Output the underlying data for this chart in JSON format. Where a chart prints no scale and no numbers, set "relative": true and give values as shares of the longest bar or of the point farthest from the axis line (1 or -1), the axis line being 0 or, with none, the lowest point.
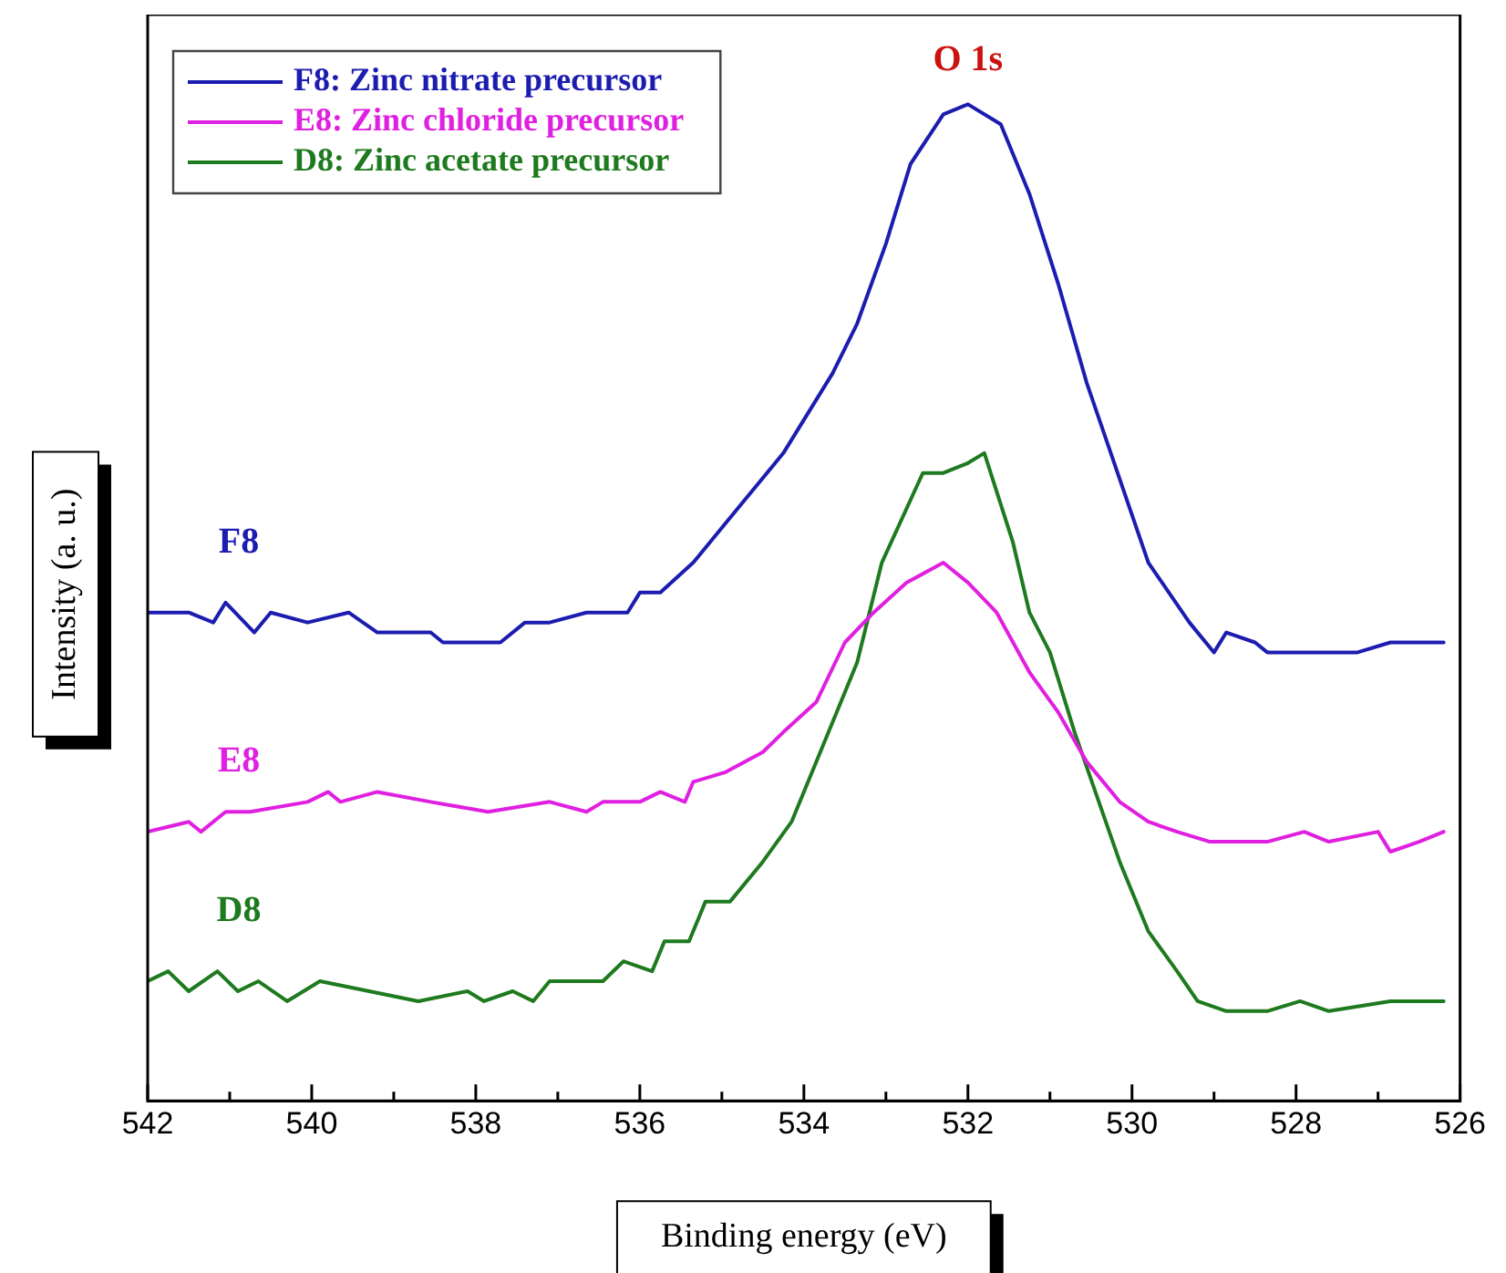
{
  "chart_data": {
    "type": "line",
    "xlabel": "Binding energy (eV)",
    "ylabel": "Intensity (a. u.)",
    "relative": true,
    "legend": "top left",
    "tick_labels": "x",
    "grid": false,
    "marker": "none",
    "line_style": "solid",
    "xlim": [
      542,
      526
    ],
    "xticks": [
      542,
      {
        "value": 541,
        "label": null
      },
      540,
      {
        "value": 539,
        "label": null
      },
      538,
      {
        "value": 537,
        "label": null
      },
      536,
      {
        "value": 535,
        "label": null
      },
      534,
      {
        "value": 533,
        "label": null
      },
      532,
      {
        "value": 531,
        "label": null
      },
      530,
      {
        "value": 529,
        "label": null
      },
      528,
      {
        "value": 527,
        "label": null
      },
      526
    ],
    "annotations": [
      "F8",
      "E8",
      "D8",
      "O 1s"
    ],
    "series": [
      {
        "name": "F8: Zinc nitrate precursor",
        "color": "#1c1cb0",
        "x": [
          542.0,
          541.5,
          541.2,
          541.05,
          540.7,
          540.5,
          540.05,
          539.55,
          539.2,
          538.55,
          538.4,
          537.9,
          537.7,
          537.4,
          537.1,
          536.65,
          536.15,
          536.0,
          535.75,
          535.35,
          534.95,
          534.25,
          533.65,
          533.35,
          533.0,
          532.7,
          532.3,
          532.0,
          531.6,
          531.25,
          530.9,
          530.55,
          530.3,
          529.8,
          529.3,
          529.0,
          528.85,
          528.5,
          528.35,
          527.95,
          527.6,
          527.25,
          526.85,
          526.5,
          526.2
        ],
        "values": [
          0.49,
          0.49,
          0.48,
          0.5,
          0.47,
          0.49,
          0.48,
          0.49,
          0.47,
          0.47,
          0.46,
          0.46,
          0.46,
          0.48,
          0.48,
          0.49,
          0.49,
          0.51,
          0.51,
          0.54,
          0.58,
          0.65,
          0.73,
          0.78,
          0.86,
          0.94,
          0.99,
          1.0,
          0.98,
          0.91,
          0.82,
          0.72,
          0.66,
          0.54,
          0.48,
          0.45,
          0.47,
          0.46,
          0.45,
          0.45,
          0.45,
          0.45,
          0.46,
          0.46,
          0.46
        ]
      },
      {
        "name": "E8: Zinc chloride precursor",
        "color": "#e020e0",
        "x": [
          542.0,
          541.5,
          541.35,
          541.05,
          540.75,
          540.05,
          539.8,
          539.65,
          539.2,
          538.55,
          537.85,
          537.1,
          536.65,
          536.45,
          536.0,
          535.75,
          535.45,
          535.35,
          534.95,
          534.5,
          534.25,
          533.85,
          533.5,
          533.15,
          532.75,
          532.3,
          532.0,
          531.65,
          531.25,
          530.9,
          530.55,
          530.15,
          529.8,
          529.45,
          529.05,
          528.35,
          527.9,
          527.6,
          527.0,
          526.85,
          526.5,
          526.2
        ],
        "values": [
          0.27,
          0.28,
          0.27,
          0.29,
          0.29,
          0.3,
          0.31,
          0.3,
          0.31,
          0.3,
          0.29,
          0.3,
          0.29,
          0.3,
          0.3,
          0.31,
          0.3,
          0.32,
          0.33,
          0.35,
          0.37,
          0.4,
          0.46,
          0.49,
          0.52,
          0.54,
          0.52,
          0.49,
          0.43,
          0.39,
          0.34,
          0.3,
          0.28,
          0.27,
          0.26,
          0.26,
          0.27,
          0.26,
          0.27,
          0.25,
          0.26,
          0.27
        ]
      },
      {
        "name": "D8: Zinc acetate precursor",
        "color": "#1e7a1e",
        "x": [
          542.0,
          541.75,
          541.5,
          541.15,
          540.9,
          540.65,
          540.3,
          539.9,
          539.3,
          538.7,
          538.1,
          537.9,
          537.55,
          537.3,
          537.1,
          536.45,
          536.2,
          535.85,
          535.7,
          535.4,
          535.2,
          534.9,
          534.5,
          534.15,
          533.8,
          533.35,
          533.05,
          532.55,
          532.3,
          532.0,
          531.8,
          531.45,
          531.25,
          531.0,
          530.7,
          530.15,
          529.8,
          529.45,
          529.2,
          528.85,
          528.35,
          527.95,
          527.6,
          526.85,
          526.5,
          526.2
        ],
        "values": [
          0.12,
          0.13,
          0.11,
          0.13,
          0.11,
          0.12,
          0.1,
          0.12,
          0.11,
          0.1,
          0.11,
          0.1,
          0.11,
          0.1,
          0.12,
          0.12,
          0.14,
          0.13,
          0.16,
          0.16,
          0.2,
          0.2,
          0.24,
          0.28,
          0.35,
          0.44,
          0.54,
          0.63,
          0.63,
          0.64,
          0.65,
          0.56,
          0.49,
          0.45,
          0.37,
          0.24,
          0.17,
          0.13,
          0.1,
          0.09,
          0.09,
          0.1,
          0.09,
          0.1,
          0.1,
          0.1
        ]
      }
    ]
  }
}
